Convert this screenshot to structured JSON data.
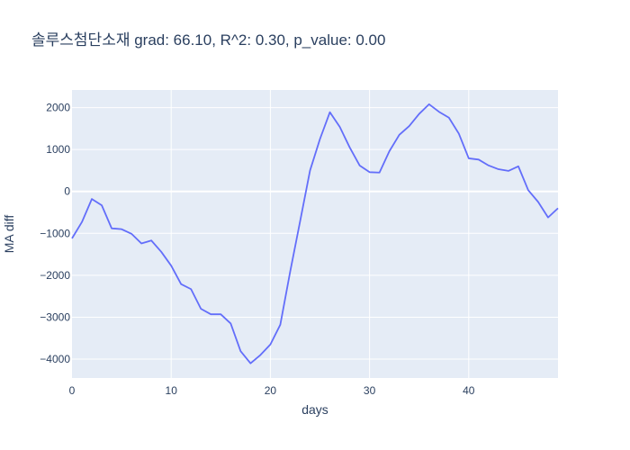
{
  "chart_data": {
    "type": "line",
    "title": "솔루스첨단소재 grad: 66.10, R^2: 0.30, p_value: 0.00",
    "xlabel": "days",
    "ylabel": "MA diff",
    "xlim": [
      0,
      49
    ],
    "ylim": [
      -4450,
      2420
    ],
    "grid": true,
    "x_ticks": [
      0,
      10,
      20,
      30,
      40
    ],
    "x_tick_labels": [
      "0",
      "10",
      "20",
      "30",
      "40"
    ],
    "y_ticks": [
      -4000,
      -3000,
      -2000,
      -1000,
      0,
      1000,
      2000
    ],
    "y_tick_labels": [
      "−4000",
      "−3000",
      "−2000",
      "−1000",
      "0",
      "1000",
      "2000"
    ],
    "series": [
      {
        "name": "MA diff",
        "color": "#636efa",
        "x": [
          0,
          1,
          2,
          3,
          4,
          5,
          6,
          7,
          8,
          9,
          10,
          11,
          12,
          13,
          14,
          15,
          16,
          17,
          18,
          19,
          20,
          21,
          22,
          23,
          24,
          25,
          26,
          27,
          28,
          29,
          30,
          31,
          32,
          33,
          34,
          35,
          36,
          37,
          38,
          39,
          40,
          41,
          42,
          43,
          44,
          45,
          46,
          47,
          48,
          49
        ],
        "values": [
          -1120,
          -730,
          -180,
          -330,
          -880,
          -900,
          -1010,
          -1240,
          -1170,
          -1440,
          -1770,
          -2210,
          -2330,
          -2800,
          -2930,
          -2930,
          -3150,
          -3810,
          -4100,
          -3900,
          -3650,
          -3180,
          -1910,
          -710,
          500,
          1250,
          1890,
          1540,
          1050,
          620,
          460,
          450,
          960,
          1350,
          1560,
          1850,
          2080,
          1900,
          1760,
          1380,
          790,
          760,
          620,
          530,
          490,
          600,
          30,
          -250,
          -620,
          -400
        ]
      }
    ]
  }
}
